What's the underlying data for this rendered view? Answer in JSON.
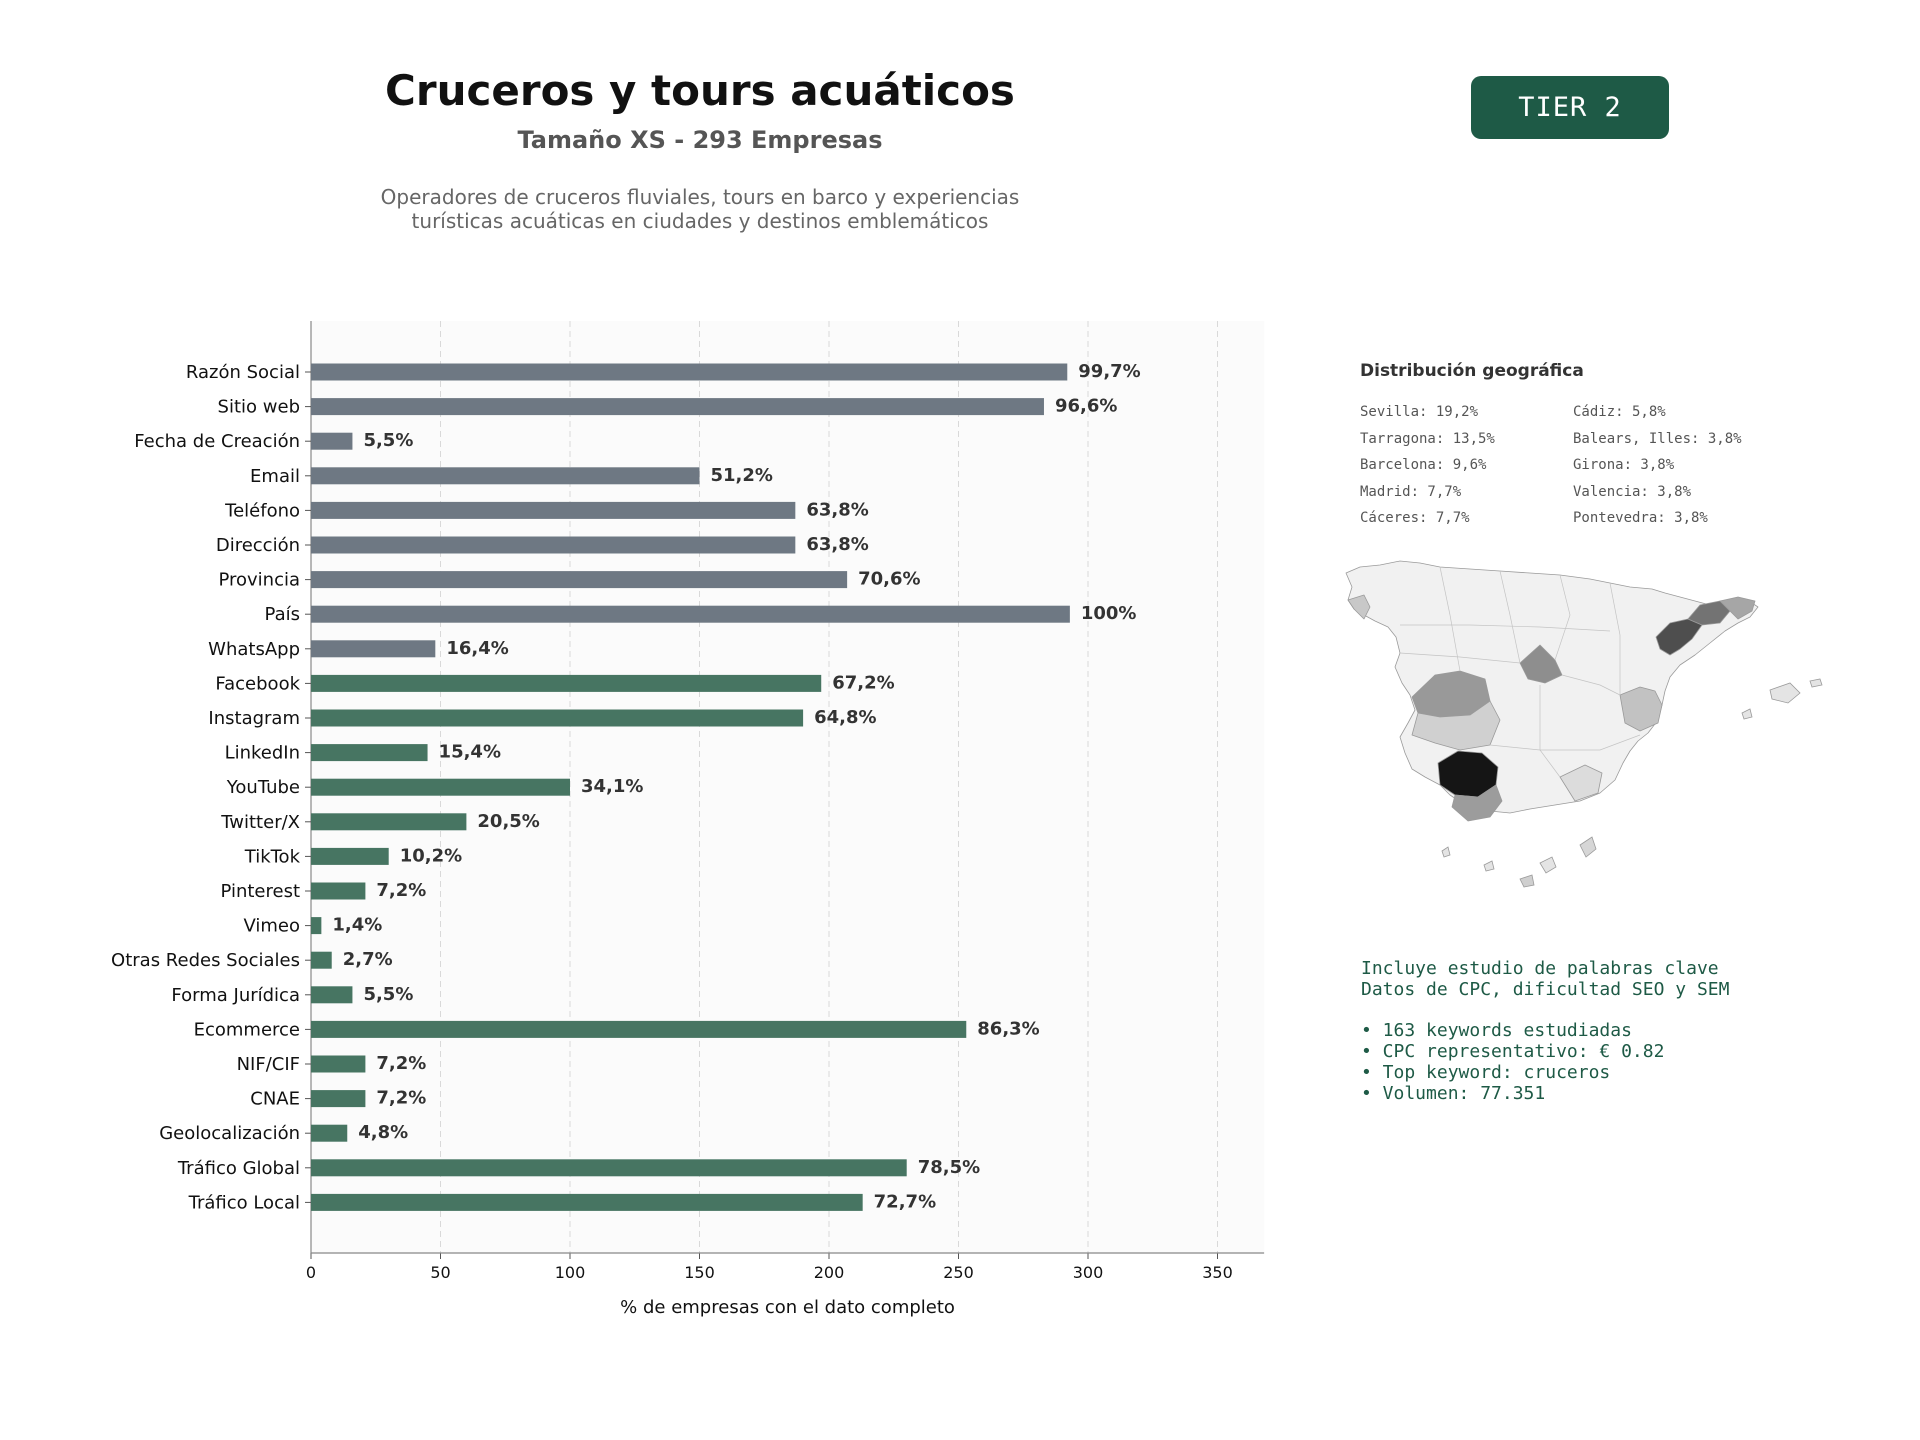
{
  "header": {
    "title": "Cruceros y tours acuáticos",
    "subtitle": "Tamaño XS - 293 Empresas",
    "description_line1": "Operadores de cruceros fluviales, tours en barco y experiencias",
    "description_line2": "turísticas acuáticas en ciudades y destinos emblemáticos",
    "tier": "TIER 2"
  },
  "colors": {
    "gray_bar": "#6e7883",
    "green_bar": "#477562",
    "brand": "#1e5a46"
  },
  "chart_data": {
    "type": "bar",
    "orientation": "horizontal",
    "xlabel": "% de empresas con el dato completo",
    "xlim": [
      0,
      368
    ],
    "xticks": [
      0,
      50,
      100,
      150,
      200,
      250,
      300,
      350
    ],
    "grid": "vertical dashed",
    "categories": [
      "Razón Social",
      "Sitio web",
      "Fecha de Creación",
      "Email",
      "Teléfono",
      "Dirección",
      "Provincia",
      "País",
      "WhatsApp",
      "Facebook",
      "Instagram",
      "LinkedIn",
      "YouTube",
      "Twitter/X",
      "TikTok",
      "Pinterest",
      "Vimeo",
      "Otras Redes Sociales",
      "Forma Jurídica",
      "Ecommerce",
      "NIF/CIF",
      "CNAE",
      "Geolocalización",
      "Tráfico Global",
      "Tráfico Local"
    ],
    "values": [
      292,
      283,
      16,
      150,
      187,
      187,
      207,
      293,
      48,
      197,
      190,
      45,
      100,
      60,
      30,
      21,
      4,
      8,
      16,
      253,
      21,
      21,
      14,
      230,
      213
    ],
    "labels": [
      "99,7%",
      "96,6%",
      "5,5%",
      "51,2%",
      "63,8%",
      "63,8%",
      "70,6%",
      "100%",
      "16,4%",
      "67,2%",
      "64,8%",
      "15,4%",
      "34,1%",
      "20,5%",
      "10,2%",
      "7,2%",
      "1,4%",
      "2,7%",
      "5,5%",
      "86,3%",
      "7,2%",
      "7,2%",
      "4,8%",
      "78,5%",
      "72,7%"
    ],
    "color_groups": [
      "gray",
      "gray",
      "gray",
      "gray",
      "gray",
      "gray",
      "gray",
      "gray",
      "gray",
      "green",
      "green",
      "green",
      "green",
      "green",
      "green",
      "green",
      "green",
      "green",
      "green",
      "green",
      "green",
      "green",
      "green",
      "green",
      "green"
    ]
  },
  "geo": {
    "title": "Distribución geográfica",
    "col1": [
      "Sevilla: 19,2%",
      "Tarragona: 13,5%",
      "Barcelona: 9,6%",
      "Madrid: 7,7%",
      "Cáceres: 7,7%"
    ],
    "col2": [
      "Cádiz: 5,8%",
      "Balears, Illes: 3,8%",
      "Girona: 3,8%",
      "Valencia: 3,8%",
      "Pontevedra: 3,8%"
    ]
  },
  "keywords": {
    "line1": "Incluye estudio de palabras clave",
    "line2": "Datos de CPC, dificultad SEO y SEM",
    "bullets": [
      "• 163 keywords estudiadas",
      "• CPC representativo: € 0.82",
      "• Top keyword: cruceros",
      "• Volumen: 77.351"
    ]
  }
}
